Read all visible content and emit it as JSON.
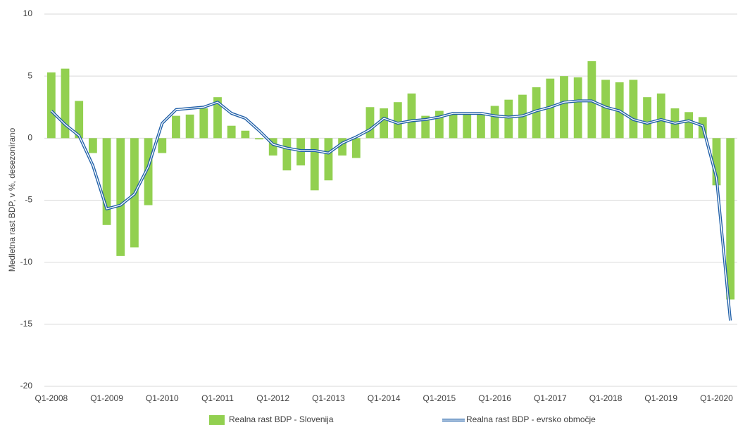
{
  "chart_data": {
    "type": "bar-line",
    "y_label": "Medletna rast BDP, v %, desezonirano",
    "categories": [
      "Q1-2008",
      null,
      null,
      null,
      "Q1-2009",
      null,
      null,
      null,
      "Q1-2010",
      null,
      null,
      null,
      "Q1-2011",
      null,
      null,
      null,
      "Q1-2012",
      null,
      null,
      null,
      "Q1-2013",
      null,
      null,
      null,
      "Q1-2014",
      null,
      null,
      null,
      "Q1-2015",
      null,
      null,
      null,
      "Q1-2016",
      null,
      null,
      null,
      "Q1-2017",
      null,
      null,
      null,
      "Q1-2018",
      null,
      null,
      null,
      "Q1-2019",
      null,
      null,
      null,
      "Q1-2020",
      null
    ],
    "series": [
      {
        "name": "Realna rast BDP - Slovenija",
        "type": "bar",
        "color": "#92d050",
        "values": [
          5.3,
          5.6,
          3.0,
          -1.2,
          -7.0,
          -9.5,
          -8.8,
          -5.4,
          -1.2,
          1.8,
          1.9,
          2.4,
          3.3,
          1.0,
          0.6,
          -0.1,
          -1.4,
          -2.6,
          -2.2,
          -4.2,
          -3.4,
          -1.4,
          -1.6,
          2.5,
          2.4,
          2.9,
          3.6,
          1.8,
          2.2,
          2.0,
          2.0,
          2.0,
          2.6,
          3.1,
          3.5,
          4.1,
          4.8,
          5.0,
          4.9,
          6.2,
          4.7,
          4.5,
          4.7,
          3.3,
          3.6,
          2.4,
          2.1,
          1.7,
          -3.8,
          -13.0
        ]
      },
      {
        "name": "Realna rast BDP - evrsko območje",
        "type": "line",
        "color": "#1f5fa8",
        "values": [
          2.2,
          1.1,
          0.2,
          -2.2,
          -5.7,
          -5.4,
          -4.5,
          -2.3,
          1.2,
          2.3,
          2.4,
          2.5,
          2.9,
          2.0,
          1.6,
          0.6,
          -0.5,
          -0.8,
          -1.0,
          -1.0,
          -1.2,
          -0.4,
          0.1,
          0.7,
          1.6,
          1.2,
          1.4,
          1.5,
          1.7,
          2.0,
          2.0,
          2.0,
          1.8,
          1.7,
          1.8,
          2.2,
          2.5,
          2.9,
          3.0,
          3.0,
          2.5,
          2.2,
          1.5,
          1.2,
          1.5,
          1.2,
          1.4,
          1.0,
          -3.2,
          -14.7
        ]
      }
    ],
    "ylim": [
      -20,
      10
    ],
    "yticks": [
      -20,
      -15,
      -10,
      -5,
      0,
      5,
      10
    ],
    "grid": true,
    "legend": "bottom"
  }
}
